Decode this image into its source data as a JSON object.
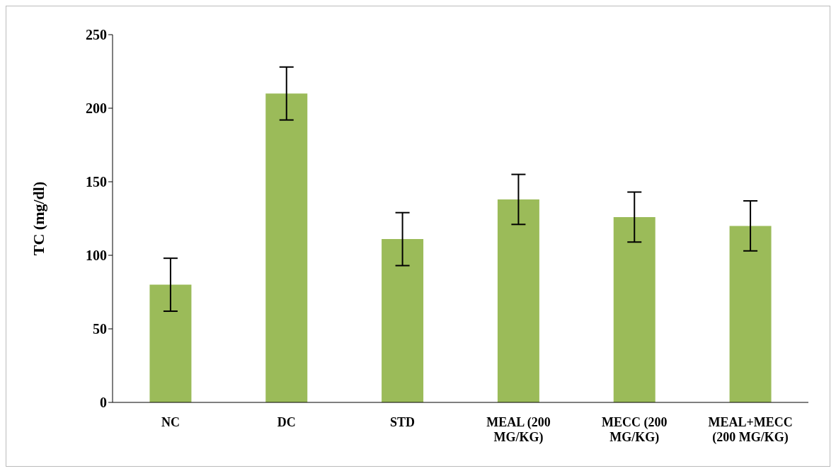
{
  "chart_data": {
    "type": "bar",
    "ylabel": "TC (mg/dl)",
    "categories": [
      "NC",
      "DC",
      "STD",
      "MEAL (200 MG/KG)",
      "MECC (200 MG/KG)",
      "MEAL+MECC (200 MG/KG)"
    ],
    "values": [
      80,
      210,
      111,
      138,
      126,
      120
    ],
    "errors": [
      18,
      18,
      18,
      17,
      17,
      17
    ],
    "color": "#9bbb59",
    "ylim": [
      0,
      250
    ],
    "yticks": [
      0,
      50,
      100,
      150,
      200,
      250
    ],
    "grid": false,
    "legend": false
  }
}
